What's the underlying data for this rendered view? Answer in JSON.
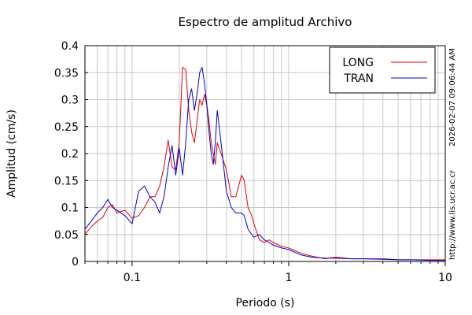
{
  "chart_data": {
    "type": "line",
    "title": "Espectro de amplitud Archivo",
    "xlabel": "Periodo (s)",
    "ylabel": "Amplitud (cm/s)",
    "xscale": "log",
    "xlim": [
      0.05,
      10
    ],
    "ylim": [
      0,
      0.4
    ],
    "x_ticks": [
      {
        "value": 0.1,
        "label": "0.1"
      },
      {
        "value": 1,
        "label": "1"
      },
      {
        "value": 10,
        "label": "10"
      }
    ],
    "y_ticks": [
      {
        "value": 0,
        "label": "0"
      },
      {
        "value": 0.05,
        "label": "0.05"
      },
      {
        "value": 0.1,
        "label": "0.1"
      },
      {
        "value": 0.15,
        "label": "0.15"
      },
      {
        "value": 0.2,
        "label": "0.2"
      },
      {
        "value": 0.25,
        "label": "0.25"
      },
      {
        "value": 0.3,
        "label": "0.3"
      },
      {
        "value": 0.35,
        "label": "0.35"
      },
      {
        "value": 0.4,
        "label": "0.4"
      }
    ],
    "grid": true,
    "legend_position": "top-right",
    "series": [
      {
        "name": "LONG",
        "color": "#dd0000",
        "x": [
          0.05,
          0.055,
          0.06,
          0.065,
          0.07,
          0.075,
          0.08,
          0.09,
          0.1,
          0.11,
          0.12,
          0.13,
          0.14,
          0.15,
          0.16,
          0.17,
          0.18,
          0.19,
          0.2,
          0.21,
          0.22,
          0.23,
          0.24,
          0.25,
          0.26,
          0.27,
          0.28,
          0.29,
          0.3,
          0.31,
          0.32,
          0.33,
          0.34,
          0.35,
          0.37,
          0.4,
          0.43,
          0.46,
          0.5,
          0.52,
          0.55,
          0.58,
          0.6,
          0.65,
          0.7,
          0.75,
          0.8,
          0.9,
          1.0,
          1.2,
          1.4,
          1.7,
          2.0,
          2.5,
          3.0,
          4.0,
          5.0,
          6.0,
          8.0,
          10.0
        ],
        "y": [
          0.05,
          0.065,
          0.075,
          0.082,
          0.1,
          0.105,
          0.09,
          0.095,
          0.08,
          0.085,
          0.1,
          0.12,
          0.12,
          0.14,
          0.175,
          0.225,
          0.175,
          0.17,
          0.22,
          0.36,
          0.355,
          0.28,
          0.24,
          0.22,
          0.26,
          0.3,
          0.29,
          0.31,
          0.29,
          0.26,
          0.22,
          0.2,
          0.18,
          0.22,
          0.2,
          0.17,
          0.12,
          0.12,
          0.16,
          0.15,
          0.1,
          0.085,
          0.07,
          0.04,
          0.035,
          0.04,
          0.035,
          0.028,
          0.025,
          0.015,
          0.01,
          0.005,
          0.008,
          0.005,
          0.005,
          0.005,
          0.003,
          0.003,
          0.003,
          0.003
        ]
      },
      {
        "name": "TRAN",
        "color": "#0000cc",
        "x": [
          0.05,
          0.055,
          0.06,
          0.065,
          0.07,
          0.075,
          0.08,
          0.09,
          0.1,
          0.11,
          0.12,
          0.13,
          0.14,
          0.15,
          0.16,
          0.17,
          0.18,
          0.19,
          0.2,
          0.21,
          0.22,
          0.23,
          0.24,
          0.25,
          0.26,
          0.27,
          0.28,
          0.29,
          0.3,
          0.31,
          0.32,
          0.33,
          0.34,
          0.35,
          0.37,
          0.4,
          0.43,
          0.46,
          0.5,
          0.52,
          0.55,
          0.58,
          0.6,
          0.65,
          0.7,
          0.75,
          0.8,
          0.9,
          1.0,
          1.2,
          1.4,
          1.7,
          2.0,
          2.5,
          3.0,
          4.0,
          5.0,
          6.0,
          8.0,
          10.0
        ],
        "y": [
          0.06,
          0.075,
          0.09,
          0.1,
          0.115,
          0.1,
          0.095,
          0.085,
          0.07,
          0.13,
          0.14,
          0.12,
          0.11,
          0.09,
          0.12,
          0.175,
          0.215,
          0.16,
          0.21,
          0.16,
          0.22,
          0.3,
          0.32,
          0.28,
          0.31,
          0.35,
          0.36,
          0.33,
          0.29,
          0.24,
          0.2,
          0.18,
          0.22,
          0.28,
          0.22,
          0.13,
          0.1,
          0.09,
          0.09,
          0.085,
          0.06,
          0.05,
          0.045,
          0.05,
          0.04,
          0.035,
          0.03,
          0.025,
          0.022,
          0.012,
          0.008,
          0.006,
          0.006,
          0.005,
          0.005,
          0.004,
          0.003,
          0.003,
          0.002,
          0.002
        ]
      }
    ]
  },
  "side_labels": {
    "timestamp": "2026-02-07 09:06:44 AM",
    "url": "http://www.lis.ucr.ac.cr"
  }
}
